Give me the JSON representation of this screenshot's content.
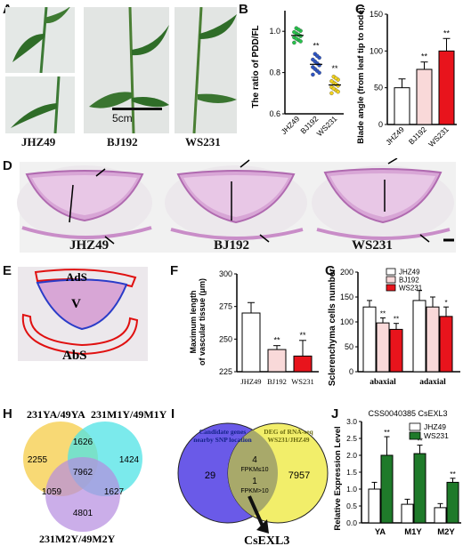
{
  "panels": {
    "A": {
      "label": "A",
      "scale_bar": "5cm",
      "captions": [
        "JHZ49",
        "BJ192",
        "WS231"
      ]
    },
    "B": {
      "label": "B",
      "ylabel": "The ratio of PDD/FL",
      "yticks": [
        "0.6",
        "0.8",
        "1.0"
      ],
      "categories": [
        "JHZ49",
        "BJ192",
        "WS231"
      ],
      "sig": [
        "",
        "**",
        "**"
      ]
    },
    "C": {
      "label": "C",
      "ylabel": "Blade angle (from leaf tip to node)",
      "yticks": [
        "0",
        "50",
        "100",
        "150"
      ],
      "categories": [
        "JHZ49",
        "BJ192",
        "WS231"
      ],
      "sig": [
        "",
        "**",
        "**"
      ]
    },
    "D": {
      "label": "D",
      "captions": [
        "JHZ49",
        "BJ192",
        "WS231"
      ]
    },
    "E": {
      "label": "E",
      "regions": [
        "AdS",
        "V",
        "AbS"
      ]
    },
    "F": {
      "label": "F",
      "ylabel": "Maximum length of vascular tissue (μm)",
      "yticks": [
        "225",
        "250",
        "275",
        "300"
      ],
      "categories": [
        "JHZ49",
        "BJ192",
        "WS231"
      ],
      "sig": [
        "",
        "**",
        "**"
      ]
    },
    "G": {
      "label": "G",
      "ylabel": "Sclerenchyma cells number",
      "yticks": [
        "0",
        "50",
        "100",
        "150",
        "200"
      ],
      "groups": [
        "abaxial",
        "adaxial"
      ],
      "legend": [
        "JHZ49",
        "BJ192",
        "WS231"
      ],
      "sig": [
        "",
        "**",
        "**",
        "",
        "",
        "*"
      ]
    },
    "H": {
      "label": "H",
      "sets": [
        "231YA/49YA",
        "231M1Y/49M1Y",
        "231M2Y/49M2Y"
      ],
      "counts": {
        "a_only": "2255",
        "b_only": "1424",
        "c_only": "4801",
        "ab": "1626",
        "ac": "1059",
        "bc": "1627",
        "abc": "7962"
      }
    },
    "I": {
      "label": "I",
      "left": "Candidate genes nearby SNP location",
      "right": "DEG of RNA-seq WS231/JHZ49",
      "left_only": "29",
      "right_only": "7957",
      "overlap1": "4",
      "overlap1_note": "FPKM≤10",
      "overlap2": "1",
      "overlap2_note": "FPKM>10",
      "gene": "CsEXL3"
    },
    "J": {
      "label": "J",
      "title": "CSS0040385 CsEXL3",
      "ylabel": "Relative Expression Level",
      "yticks": [
        "0.0",
        "0.5",
        "1.0",
        "1.5",
        "2.0",
        "2.5",
        "3.0"
      ],
      "categories": [
        "YA",
        "M1Y",
        "M2Y"
      ],
      "legend": [
        "JHZ49",
        "WS231"
      ],
      "sig": [
        "**",
        "**",
        "**"
      ]
    }
  },
  "colors": {
    "jhz49": "#ffffff",
    "bj192": "#f9d9d9",
    "ws231": "#e8141c",
    "green_dot": "#27c24c",
    "blue_dot": "#2e55c4",
    "yellow_dot": "#f2d21e",
    "green_bar": "#1f7a2a",
    "venn_yellow": "#f7d566",
    "venn_cyan": "#4fe3e6",
    "venn_purple": "#b58be0",
    "venn_blue": "#6a5ae8",
    "venn_yellow2": "#f2ee6a"
  },
  "chart_data": [
    {
      "type": "scatter",
      "panel": "B",
      "categories": [
        "JHZ49",
        "BJ192",
        "WS231"
      ],
      "series": [
        {
          "values": [
            0.98,
            0.84,
            0.74
          ]
        }
      ],
      "ylabel": "The ratio of PDD/FL",
      "ylim": [
        0.6,
        1.1
      ]
    },
    {
      "type": "bar",
      "panel": "C",
      "categories": [
        "JHZ49",
        "BJ192",
        "WS231"
      ],
      "values": [
        50,
        75,
        100
      ],
      "errors": [
        12,
        10,
        17
      ],
      "ylabel": "Blade angle (from leaf tip to node)",
      "ylim": [
        0,
        150
      ]
    },
    {
      "type": "bar",
      "panel": "F",
      "categories": [
        "JHZ49",
        "BJ192",
        "WS231"
      ],
      "values": [
        270,
        242,
        237
      ],
      "errors": [
        8,
        3,
        12
      ],
      "ylabel": "Maximum length of vascular tissue (μm)",
      "ylim": [
        225,
        300
      ]
    },
    {
      "type": "bar",
      "panel": "G",
      "categories": [
        "abaxial",
        "adaxial"
      ],
      "series": [
        {
          "name": "JHZ49",
          "values": [
            130,
            143
          ]
        },
        {
          "name": "BJ192",
          "values": [
            98,
            130
          ]
        },
        {
          "name": "WS231",
          "values": [
            85,
            111
          ]
        }
      ],
      "errors": [
        [
          13,
          20
        ],
        [
          10,
          20
        ],
        [
          12,
          19
        ]
      ],
      "ylabel": "Sclerenchyma cells number",
      "ylim": [
        0,
        200
      ]
    },
    {
      "type": "bar",
      "panel": "J",
      "categories": [
        "YA",
        "M1Y",
        "M2Y"
      ],
      "series": [
        {
          "name": "JHZ49",
          "values": [
            1.0,
            0.55,
            0.45
          ]
        },
        {
          "name": "WS231",
          "values": [
            2.0,
            2.05,
            1.2
          ]
        }
      ],
      "errors": [
        [
          0.2,
          0.15,
          0.12
        ],
        [
          0.55,
          0.25,
          0.12
        ]
      ],
      "title": "CSS0040385 CsEXL3",
      "ylabel": "Relative Expression Level",
      "ylim": [
        0,
        3.0
      ]
    }
  ]
}
